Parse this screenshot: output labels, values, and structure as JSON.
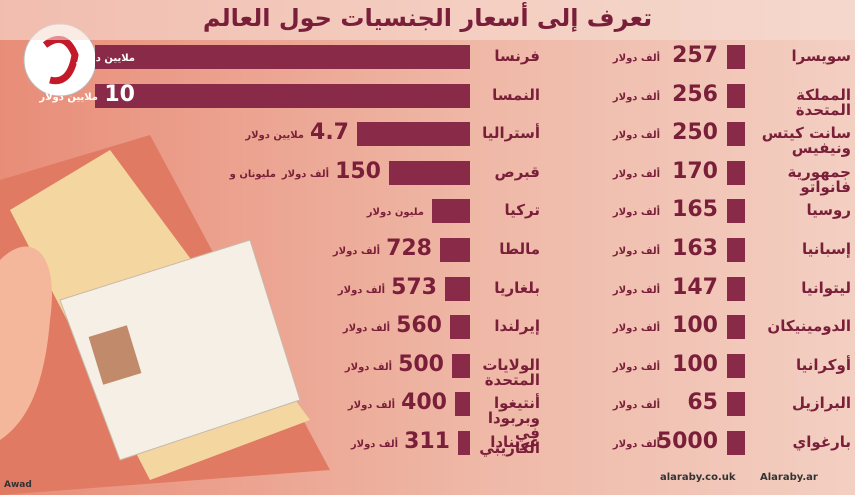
{
  "title": "تعرف إلى أسعار الجنسيات حول العالم",
  "right_rows": [
    {
      "country": "سويسرا",
      "amount": 257,
      "unit": "ألف دولار"
    },
    {
      "country": "المملكة المتحدة",
      "amount": 256,
      "unit": "ألف دولار"
    },
    {
      "country": "سانت كيتس ونيفيس",
      "amount": 250,
      "unit": "ألف دولار"
    },
    {
      "country": "جمهورية فانواتو",
      "amount": 170,
      "unit": "ألف دولار"
    },
    {
      "country": "روسيا",
      "amount": 165,
      "unit": "ألف دولار"
    },
    {
      "country": "إسبانيا",
      "amount": 163,
      "unit": "ألف دولار"
    },
    {
      "country": "ليتوانيا",
      "amount": 147,
      "unit": "ألف دولار"
    },
    {
      "country": "الدومينيكان",
      "amount": 100,
      "unit": "ألف دولار"
    },
    {
      "country": "أوكرانيا",
      "amount": 100,
      "unit": "ألف دولار"
    },
    {
      "country": "البرازيل",
      "amount": 65,
      "unit": "ألف دولار"
    },
    {
      "country": "بارغواي",
      "amount": 5000,
      "unit": "ألف دولار"
    }
  ],
  "left_rows": [
    {
      "country": "فرنسا",
      "unit": "ملايين دولار"
    },
    {
      "country": "النمسا",
      "amount": 10,
      "unit": "ملايين دولار"
    },
    {
      "country": "أستراليا",
      "amount": 4.7,
      "unit": "ملايين دولار"
    },
    {
      "country": "قبرص",
      "prefix": "مليونان و",
      "amount": 150,
      "unit": "ألف دولار"
    },
    {
      "country": "تركيا",
      "unit": "مليون دولار"
    },
    {
      "country": "مالطا",
      "amount": 728,
      "unit": "ألف دولار"
    },
    {
      "country": "بلغاريا",
      "amount": 573,
      "unit": "ألف دولار"
    },
    {
      "country": "إيرلندا",
      "amount": 560,
      "unit": "ألف دولار"
    },
    {
      "country": "الولايات المتحدة",
      "amount": 500,
      "unit": "ألف دولار"
    },
    {
      "country": "أنتيغوا وبربودا في الكاريبي",
      "amount": 400,
      "unit": "ألف دولار"
    },
    {
      "country": "غرينادا",
      "amount": 311,
      "unit": "ألف دولار"
    }
  ],
  "footer": {
    "site": "alaraby.co.uk",
    "social": "Alaraby.ar",
    "credit": "Awad"
  }
}
